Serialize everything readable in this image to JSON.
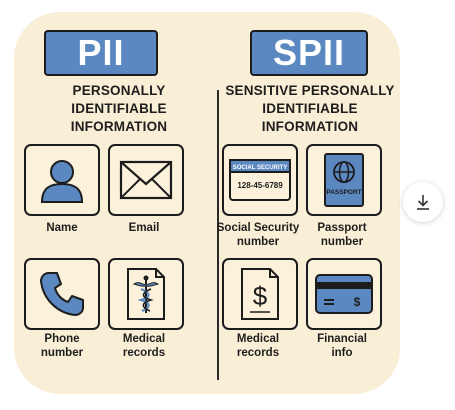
{
  "pii": {
    "badge": "PII",
    "title_lines": [
      "PERSONALLY",
      "IDENTIFIABLE",
      "INFORMATION"
    ],
    "items": [
      {
        "label_lines": [
          "Name"
        ],
        "icon": "person-icon"
      },
      {
        "label_lines": [
          "Email"
        ],
        "icon": "envelope-icon"
      },
      {
        "label_lines": [
          "Phone",
          "number"
        ],
        "icon": "phone-icon"
      },
      {
        "label_lines": [
          "Medical",
          "records"
        ],
        "icon": "caduceus-document-icon"
      }
    ]
  },
  "spii": {
    "badge": "SPII",
    "title_lines": [
      "SENSITIVE PERSONALLY",
      "IDENTIFIABLE",
      "INFORMATION"
    ],
    "items": [
      {
        "label_lines": [
          "Social Security",
          "number"
        ],
        "icon": "ssn-card-icon",
        "card_header": "SOCIAL SECURITY",
        "card_number": "128-45-6789"
      },
      {
        "label_lines": [
          "Passport",
          "number"
        ],
        "icon": "passport-icon",
        "card_text": "PASSPORT"
      },
      {
        "label_lines": [
          "Medical",
          "records"
        ],
        "icon": "dollar-document-icon"
      },
      {
        "label_lines": [
          "Financial",
          "info"
        ],
        "icon": "credit-card-icon"
      }
    ]
  },
  "colors": {
    "accent_blue": "#5b88c0",
    "card_background": "#f9eed6",
    "outline": "#1c1c1c"
  },
  "download_button_icon": "download-icon"
}
